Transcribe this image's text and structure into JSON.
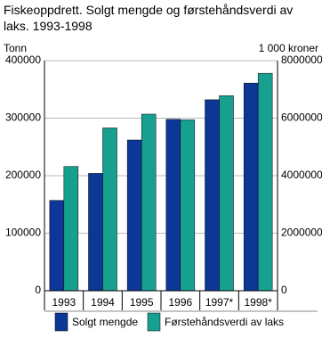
{
  "chart_data": {
    "type": "bar",
    "title": "Fiskeoppdrett. Solgt mengde og førstehåndsverdi av laks. 1993-1998",
    "y_label": "Tonn",
    "y2_label": "1 000 kroner",
    "categories": [
      "1993",
      "1994",
      "1995",
      "1996",
      "1997*",
      "1998*"
    ],
    "series": [
      {
        "name": "Solgt mengde",
        "color": "#0d3796",
        "values": [
          157000,
          204000,
          262000,
          298000,
          332000,
          361000
        ]
      },
      {
        "name": "Førstehåndsverdi av laks",
        "color": "#17a090",
        "axis": "y2",
        "values": [
          4320000,
          5660000,
          6140000,
          5940000,
          6780000,
          7560000
        ]
      }
    ],
    "ylim": [
      0,
      400000
    ],
    "yticks": [
      0,
      100000,
      200000,
      300000,
      400000
    ],
    "y2lim": [
      0,
      8000000
    ],
    "y2ticks": [
      0,
      2000000,
      4000000,
      6000000,
      8000000
    ],
    "grid": true
  }
}
